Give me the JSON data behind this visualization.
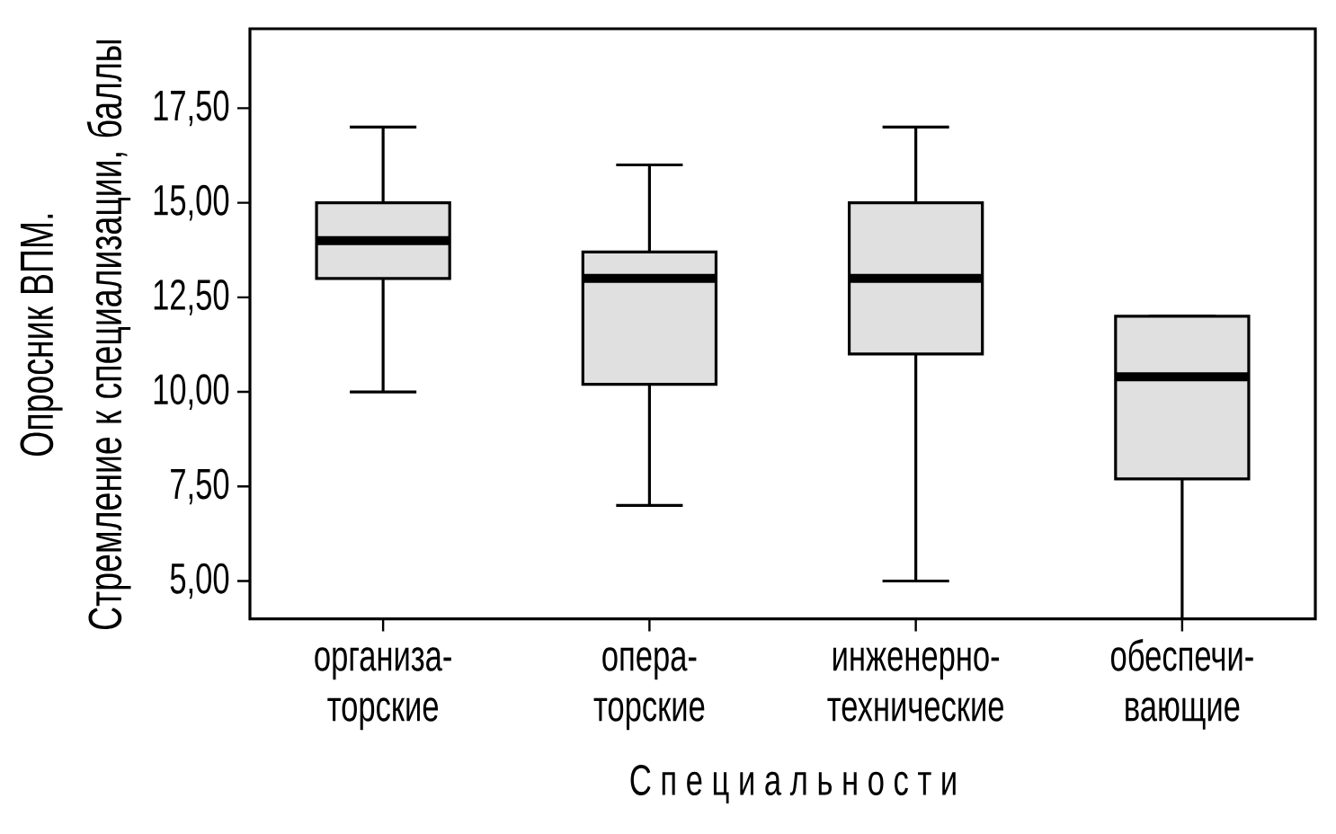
{
  "chart_data": {
    "type": "box",
    "xlabel": "С п е ц и а л ь н о с т и",
    "ylabel": "Опросник ВПМ. Стремление к специализации, баллы",
    "categories": [
      "организа-торские",
      "опера-торские",
      "инженерно-технические",
      "обеспечи-вающие"
    ],
    "boxes": [
      {
        "low": 10,
        "q1": 13,
        "median": 14,
        "q3": 15,
        "high": 17
      },
      {
        "low": 7,
        "q1": 10.2,
        "median": 13,
        "q3": 13.7,
        "high": 16
      },
      {
        "low": 5,
        "q1": 11,
        "median": 13,
        "q3": 15,
        "high": 17
      },
      {
        "low": 4,
        "q1": 7.7,
        "median": 10.4,
        "q3": 12,
        "high": 12
      }
    ],
    "color": "#e0e0e0",
    "ylim": [
      4,
      19.6
    ],
    "yticks": [
      {
        "value": 5,
        "label": "5,00"
      },
      {
        "value": 7.5,
        "label": "7,50"
      },
      {
        "value": 10,
        "label": "10,00"
      },
      {
        "value": 12.5,
        "label": "12,50"
      },
      {
        "value": 15,
        "label": "15,00"
      },
      {
        "value": 17.5,
        "label": "17,50"
      }
    ]
  }
}
